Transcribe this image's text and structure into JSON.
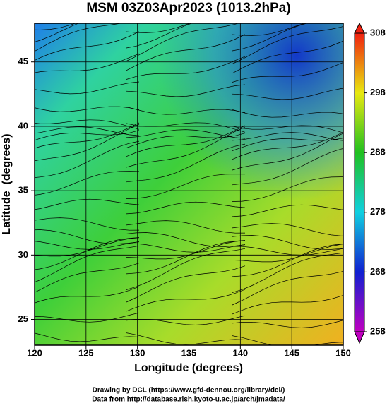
{
  "chart_data": {
    "type": "map",
    "title": "MSM 03Z03Apr2023 (1013.2hPa)",
    "xlabel": "Longitude (degrees)",
    "ylabel": "Latitude  (degrees)",
    "xlim": [
      120,
      150
    ],
    "xticks": [
      120,
      125,
      130,
      135,
      140,
      145,
      150
    ],
    "ylim": [
      23,
      48
    ],
    "yticks": [
      25,
      30,
      35,
      40,
      45
    ],
    "grid": true,
    "colorbar": {
      "lim": [
        258,
        308
      ],
      "ticks": [
        258,
        268,
        278,
        288,
        298,
        308
      ]
    },
    "footer": [
      "Drawing by DCL (https://www.gfd-dennou.org/library/dcl/)",
      "Data from http://database.rish.kyoto-u.ac.jp/arch/jmadata/"
    ]
  }
}
